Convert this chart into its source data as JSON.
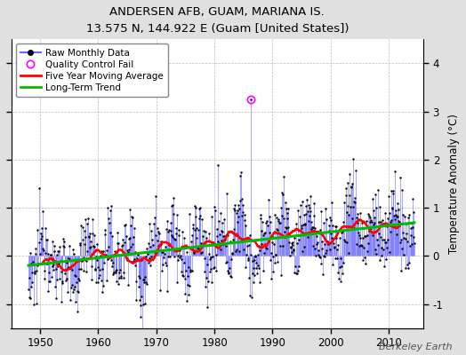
{
  "title": "ANDERSEN AFB, GUAM, MARIANA IS.",
  "subtitle": "13.575 N, 144.922 E (Guam [United States])",
  "ylabel": "Temperature Anomaly (°C)",
  "xlabel_credit": "Berkeley Earth",
  "ylim": [
    -1.5,
    4.5
  ],
  "xlim": [
    1945,
    2016
  ],
  "xticks": [
    1950,
    1960,
    1970,
    1980,
    1990,
    2000,
    2010
  ],
  "yticks": [
    -1,
    0,
    1,
    2,
    3,
    4
  ],
  "bg_color": "#e0e0e0",
  "plot_bg_color": "#ffffff",
  "raw_line_color": "#6666ff",
  "raw_marker_color": "#000000",
  "qc_fail_color": "#ff00ff",
  "moving_avg_color": "#ff0000",
  "trend_color": "#00bb00",
  "seed": 12345
}
